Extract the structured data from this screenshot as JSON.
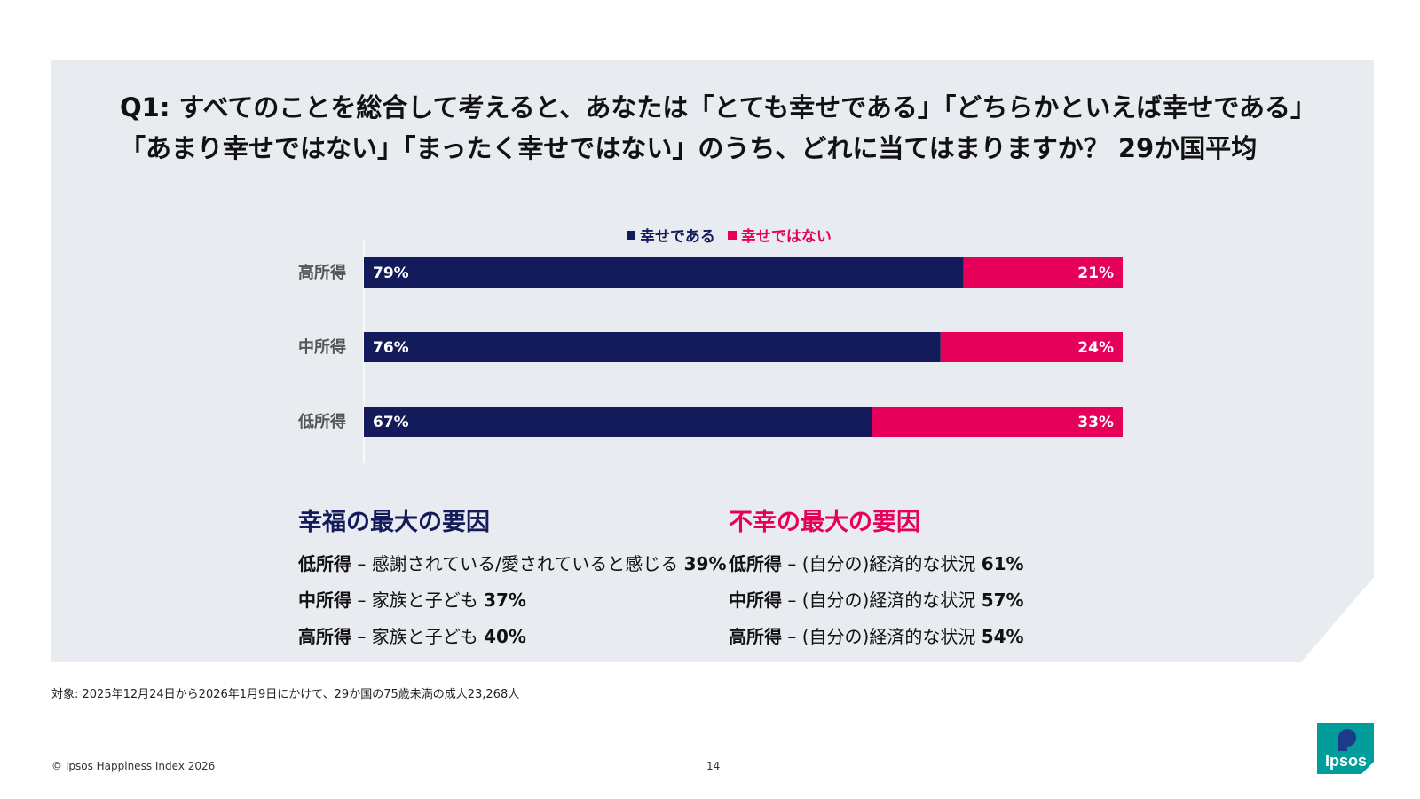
{
  "title": {
    "line1": "Q1: すべてのことを総合して考えると、あなたは「とても幸せである」「どちらかといえば幸せである」",
    "line2": "「あまり幸せではない」「まったく幸せではない」のうち、どれに当てはまりますか？  29か国平均"
  },
  "legend": {
    "happy": "幸せである",
    "unhappy": "幸せではない"
  },
  "colors": {
    "happy": "#141b5b",
    "unhappy": "#e6005a",
    "panel": "#e8ebf0"
  },
  "chart_data": {
    "type": "bar",
    "stacked": true,
    "orientation": "horizontal",
    "categories": [
      "高所得",
      "中所得",
      "低所得"
    ],
    "series": [
      {
        "name": "幸せである",
        "values": [
          79,
          76,
          67
        ]
      },
      {
        "name": "幸せではない",
        "values": [
          21,
          24,
          33
        ]
      }
    ],
    "value_suffix": "%",
    "xlim": [
      0,
      100
    ],
    "legend_position": "top-center"
  },
  "happiness_factors": {
    "heading": "幸福の最大の要因",
    "rows": [
      {
        "group": "低所得",
        "sep": " – ",
        "text": "感謝されている/愛されていると感じる ",
        "value": "39%"
      },
      {
        "group": "中所得",
        "sep": " – ",
        "text": "家族と子ども ",
        "value": "37%"
      },
      {
        "group": "高所得",
        "sep": " – ",
        "text": "家族と子ども ",
        "value": "40%"
      }
    ]
  },
  "unhappiness_factors": {
    "heading": "不幸の最大の要因",
    "rows": [
      {
        "group": "低所得",
        "sep": " – ",
        "text": "(自分の)経済的な状況 ",
        "value": "61%"
      },
      {
        "group": "中所得",
        "sep": " – ",
        "text": "(自分の)経済的な状況 ",
        "value": "57%"
      },
      {
        "group": "高所得",
        "sep": " – ",
        "text": "(自分の)経済的な状況 ",
        "value": "54%"
      }
    ]
  },
  "footnote": "対象: 2025年12月24日から2026年1月9日にかけて、29か国の75歳未満の成人23,268人",
  "copyright": "© Ipsos Happiness Index 2026",
  "page_number": "14",
  "logo_text": "Ipsos",
  "logo_color": "#009d9a"
}
